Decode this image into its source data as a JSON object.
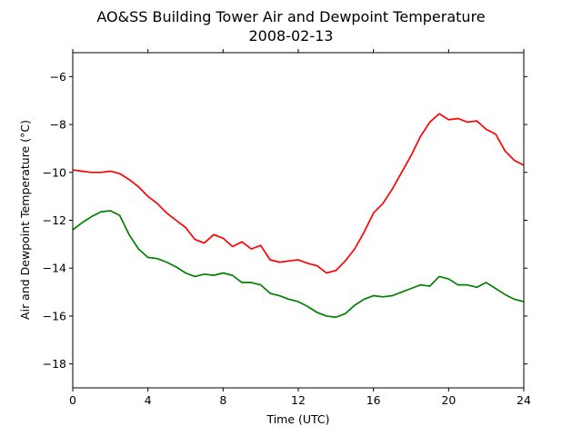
{
  "chart_data": {
    "type": "line",
    "title": "AO&SS Building Tower Air and Dewpoint Temperature",
    "subtitle": "2008-02-13",
    "xlabel": "Time (UTC)",
    "ylabel": "Air and Dewpoint Temperature (°C)",
    "xlim": [
      0,
      24
    ],
    "ylim": [
      -19,
      -5
    ],
    "xticks": [
      0,
      4,
      8,
      12,
      16,
      20,
      24
    ],
    "yticks": [
      -18,
      -16,
      -14,
      -12,
      -10,
      -8,
      -6
    ],
    "ytick_labels": [
      "−18",
      "−16",
      "−14",
      "−12",
      "−10",
      "−8",
      "−6"
    ],
    "grid": false,
    "legend": "none",
    "series": [
      {
        "color": "#ff0000",
        "x": [
          0,
          0.5,
          1,
          1.5,
          2,
          2.5,
          3,
          3.5,
          4,
          4.5,
          5,
          5.5,
          6,
          6.5,
          7,
          7.5,
          8,
          8.5,
          9,
          9.5,
          10,
          10.5,
          11,
          11.5,
          12,
          12.5,
          13,
          13.5,
          14,
          14.5,
          15,
          15.5,
          16,
          16.5,
          17,
          17.5,
          18,
          18.5,
          19,
          19.5,
          20,
          20.5,
          21,
          21.5,
          22,
          22.5,
          23,
          23.5,
          24
        ],
        "y": [
          -9.9,
          -9.95,
          -10.0,
          -10.0,
          -9.95,
          -10.05,
          -10.3,
          -10.6,
          -11.0,
          -11.3,
          -11.7,
          -12.0,
          -12.3,
          -12.8,
          -12.95,
          -12.6,
          -12.75,
          -13.1,
          -12.9,
          -13.2,
          -13.05,
          -13.65,
          -13.75,
          -13.7,
          -13.65,
          -13.8,
          -13.9,
          -14.2,
          -14.1,
          -13.7,
          -13.2,
          -12.5,
          -11.7,
          -11.3,
          -10.7,
          -10.0,
          -9.3,
          -8.5,
          -7.9,
          -7.55,
          -7.8,
          -7.75,
          -7.9,
          -7.85,
          -8.2,
          -8.4,
          -9.1,
          -9.5,
          -9.7
        ]
      },
      {
        "color": "#008000",
        "x": [
          0,
          0.5,
          1,
          1.5,
          2,
          2.5,
          3,
          3.5,
          4,
          4.5,
          5,
          5.5,
          6,
          6.5,
          7,
          7.5,
          8,
          8.5,
          9,
          9.5,
          10,
          10.5,
          11,
          11.5,
          12,
          12.5,
          13,
          13.5,
          14,
          14.5,
          15,
          15.5,
          16,
          16.5,
          17,
          17.5,
          18,
          18.5,
          19,
          19.5,
          20,
          20.5,
          21,
          21.5,
          22,
          22.5,
          23,
          23.5,
          24
        ],
        "y": [
          -12.4,
          -12.1,
          -11.85,
          -11.65,
          -11.6,
          -11.8,
          -12.6,
          -13.2,
          -13.55,
          -13.6,
          -13.75,
          -13.95,
          -14.2,
          -14.35,
          -14.25,
          -14.3,
          -14.2,
          -14.3,
          -14.6,
          -14.6,
          -14.7,
          -15.05,
          -15.15,
          -15.3,
          -15.4,
          -15.6,
          -15.85,
          -16.0,
          -16.05,
          -15.9,
          -15.55,
          -15.3,
          -15.15,
          -15.2,
          -15.15,
          -15.0,
          -14.85,
          -14.7,
          -14.75,
          -14.35,
          -14.45,
          -14.7,
          -14.7,
          -14.8,
          -14.6,
          -14.85,
          -15.1,
          -15.3,
          -15.4
        ]
      }
    ]
  }
}
